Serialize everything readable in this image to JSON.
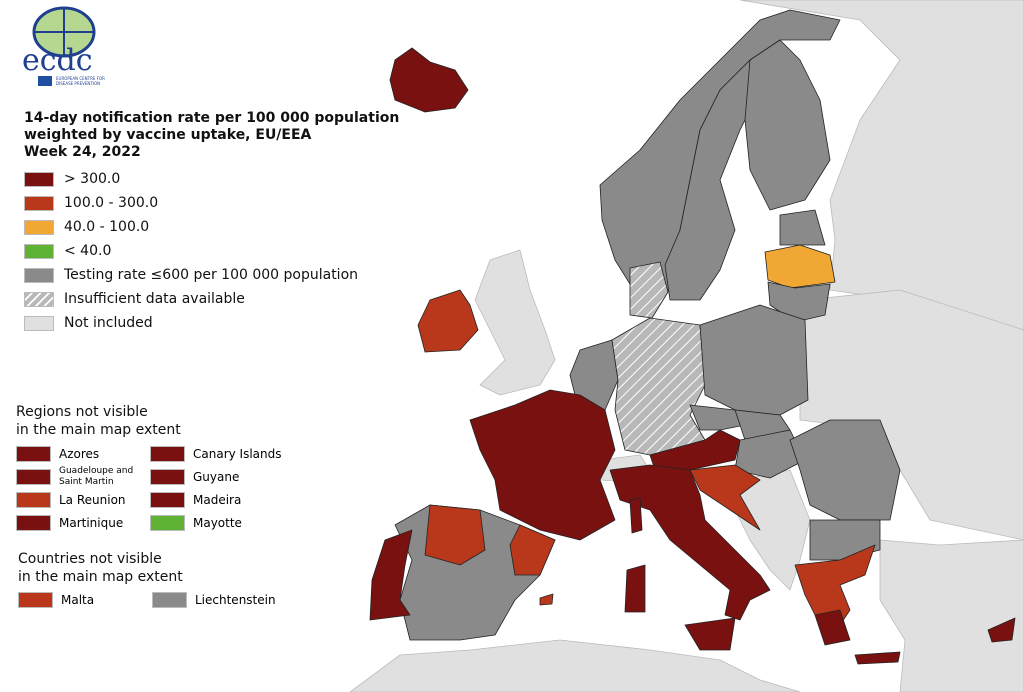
{
  "logo": {
    "text": "ecdc",
    "subtitle": "EUROPEAN CENTRE FOR DISEASE PREVENTION AND CONTROL"
  },
  "title": {
    "line1": "14-day notification rate per 100 000 population",
    "line2": "weighted by vaccine uptake, EU/EEA",
    "line3": "Week 24, 2022"
  },
  "colors": {
    "gt300": "#7a1111",
    "r100_300": "#b9381c",
    "r40_100": "#f0a733",
    "lt40": "#5fb233",
    "lowtest": "#8a8a8a",
    "insufficient": "#b8b8b8",
    "not_included": "#e0e0e0",
    "sea": "#ffffff"
  },
  "legend": [
    {
      "label": "> 300.0",
      "cat": "gt300"
    },
    {
      "label": "100.0 - 300.0",
      "cat": "r100_300"
    },
    {
      "label": "40.0 - 100.0",
      "cat": "r40_100"
    },
    {
      "label": "< 40.0",
      "cat": "lt40"
    },
    {
      "label": "Testing rate ≤600 per 100 000 population",
      "cat": "lowtest"
    },
    {
      "label": "Insufficient data available",
      "cat": "insufficient"
    },
    {
      "label": "Not included",
      "cat": "not_included"
    }
  ],
  "regions_heading": {
    "line1": "Regions not visible",
    "line2": "in the main map extent"
  },
  "regions": [
    {
      "label": "Azores",
      "cat": "gt300"
    },
    {
      "label": "Canary Islands",
      "cat": "gt300"
    },
    {
      "label": "Guadeloupe and Saint Martin",
      "cat": "gt300"
    },
    {
      "label": "Guyane",
      "cat": "gt300"
    },
    {
      "label": "La Reunion",
      "cat": "r100_300"
    },
    {
      "label": "Madeira",
      "cat": "gt300"
    },
    {
      "label": "Martinique",
      "cat": "gt300"
    },
    {
      "label": "Mayotte",
      "cat": "lt40"
    }
  ],
  "countries_heading": {
    "line1": "Countries not visible",
    "line2": "in the main map extent"
  },
  "countries": [
    {
      "label": "Malta",
      "cat": "r100_300"
    },
    {
      "label": "Liechtenstein",
      "cat": "lowtest"
    }
  ]
}
